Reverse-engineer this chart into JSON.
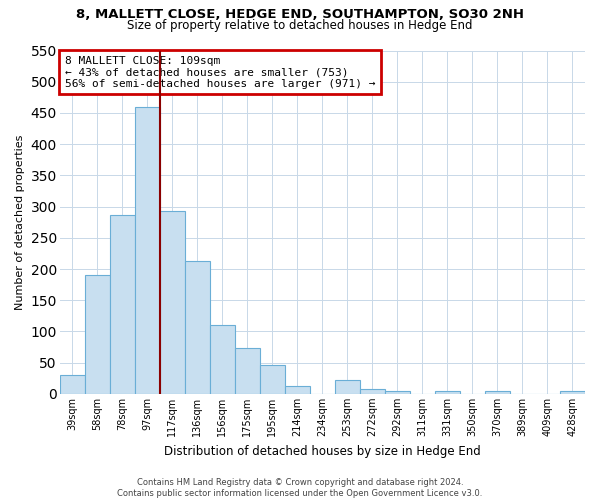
{
  "title": "8, MALLETT CLOSE, HEDGE END, SOUTHAMPTON, SO30 2NH",
  "subtitle": "Size of property relative to detached houses in Hedge End",
  "xlabel": "Distribution of detached houses by size in Hedge End",
  "ylabel": "Number of detached properties",
  "bar_labels": [
    "39sqm",
    "58sqm",
    "78sqm",
    "97sqm",
    "117sqm",
    "136sqm",
    "156sqm",
    "175sqm",
    "195sqm",
    "214sqm",
    "234sqm",
    "253sqm",
    "272sqm",
    "292sqm",
    "311sqm",
    "331sqm",
    "350sqm",
    "370sqm",
    "389sqm",
    "409sqm",
    "428sqm"
  ],
  "bar_values": [
    30,
    190,
    287,
    460,
    293,
    213,
    110,
    74,
    47,
    13,
    0,
    22,
    8,
    5,
    0,
    5,
    0,
    5,
    0,
    0,
    5
  ],
  "bar_color": "#c8dff0",
  "bar_edge_color": "#6aaed6",
  "vline_color": "#8b0000",
  "annotation_title": "8 MALLETT CLOSE: 109sqm",
  "annotation_line1": "← 43% of detached houses are smaller (753)",
  "annotation_line2": "56% of semi-detached houses are larger (971) →",
  "annotation_box_color": "#ffffff",
  "annotation_box_edge": "#cc0000",
  "ylim": [
    0,
    550
  ],
  "yticks": [
    0,
    50,
    100,
    150,
    200,
    250,
    300,
    350,
    400,
    450,
    500,
    550
  ],
  "footer1": "Contains HM Land Registry data © Crown copyright and database right 2024.",
  "footer2": "Contains public sector information licensed under the Open Government Licence v3.0.",
  "bg_color": "#ffffff",
  "grid_color": "#c8d8e8"
}
